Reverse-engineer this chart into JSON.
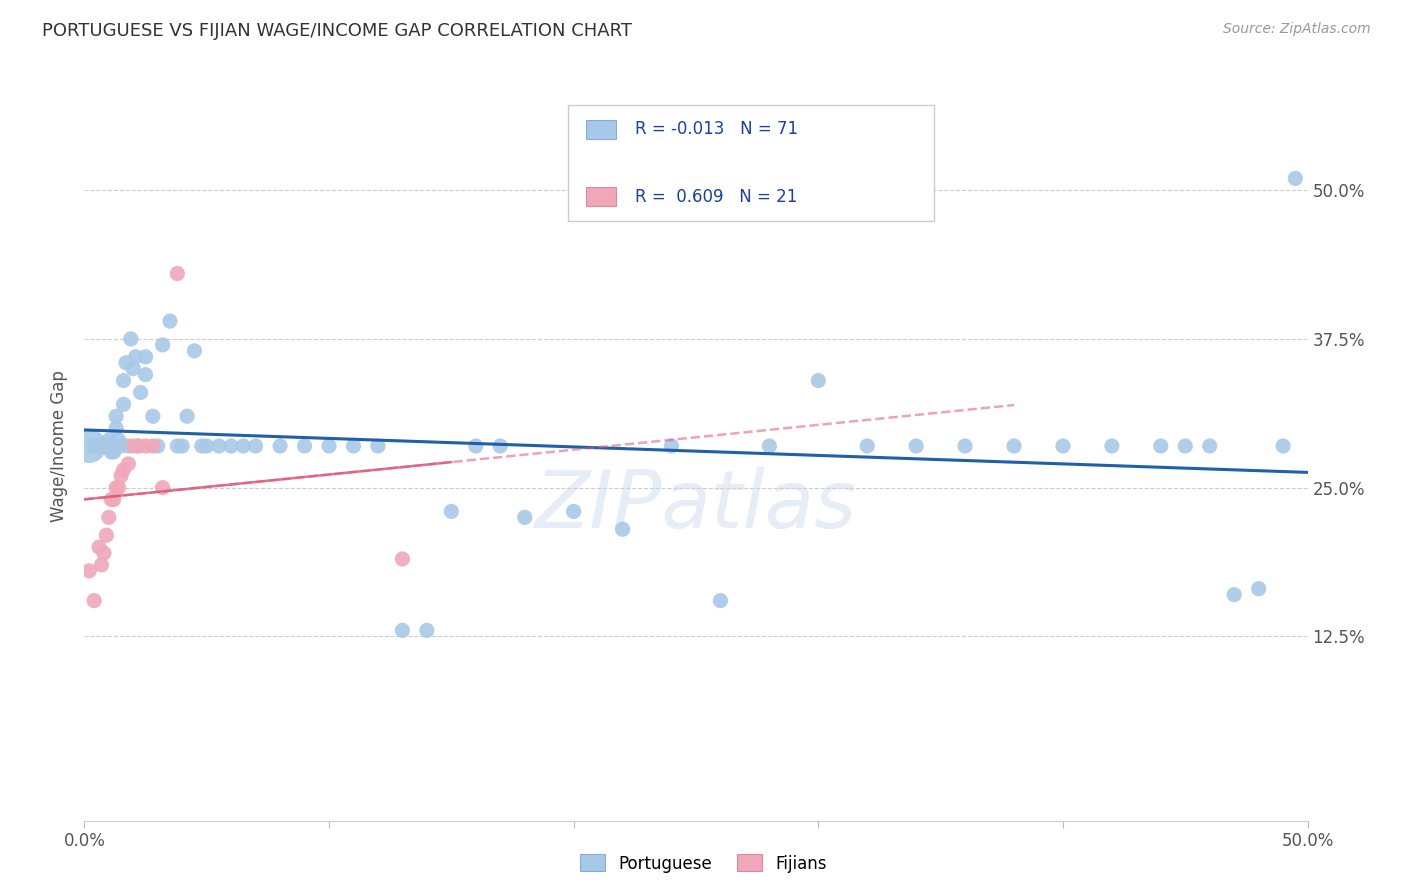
{
  "title": "PORTUGUESE VS FIJIAN WAGE/INCOME GAP CORRELATION CHART",
  "source": "Source: ZipAtlas.com",
  "ylabel": "Wage/Income Gap",
  "xlim": [
    0.0,
    0.5
  ],
  "ylim": [
    -0.03,
    0.6
  ],
  "portuguese_R": -0.013,
  "portuguese_N": 71,
  "fijian_R": 0.609,
  "fijian_N": 21,
  "portuguese_color": "#a8c8e8",
  "fijian_color": "#f0a8b8",
  "portuguese_line_color": "#2060a8",
  "fijian_line_color": "#e05878",
  "legend_text_color": "#1a40a0",
  "watermark": "ZIPatlas",
  "portuguese_x": [
    0.002,
    0.004,
    0.006,
    0.007,
    0.008,
    0.009,
    0.01,
    0.01,
    0.011,
    0.011,
    0.012,
    0.012,
    0.013,
    0.013,
    0.014,
    0.015,
    0.016,
    0.016,
    0.017,
    0.018,
    0.019,
    0.02,
    0.021,
    0.022,
    0.023,
    0.025,
    0.025,
    0.028,
    0.03,
    0.032,
    0.035,
    0.038,
    0.04,
    0.042,
    0.045,
    0.048,
    0.05,
    0.055,
    0.06,
    0.065,
    0.07,
    0.08,
    0.09,
    0.1,
    0.11,
    0.12,
    0.13,
    0.14,
    0.15,
    0.16,
    0.17,
    0.18,
    0.2,
    0.22,
    0.24,
    0.26,
    0.28,
    0.3,
    0.32,
    0.34,
    0.36,
    0.38,
    0.4,
    0.42,
    0.44,
    0.45,
    0.46,
    0.47,
    0.48,
    0.49,
    0.495
  ],
  "portuguese_y": [
    0.285,
    0.285,
    0.285,
    0.285,
    0.285,
    0.285,
    0.285,
    0.29,
    0.28,
    0.285,
    0.28,
    0.285,
    0.3,
    0.31,
    0.29,
    0.285,
    0.32,
    0.34,
    0.355,
    0.285,
    0.375,
    0.35,
    0.36,
    0.285,
    0.33,
    0.345,
    0.36,
    0.31,
    0.285,
    0.37,
    0.39,
    0.285,
    0.285,
    0.31,
    0.365,
    0.285,
    0.285,
    0.285,
    0.285,
    0.285,
    0.285,
    0.285,
    0.285,
    0.285,
    0.285,
    0.285,
    0.13,
    0.13,
    0.23,
    0.285,
    0.285,
    0.225,
    0.23,
    0.215,
    0.285,
    0.155,
    0.285,
    0.34,
    0.285,
    0.285,
    0.285,
    0.285,
    0.285,
    0.285,
    0.285,
    0.285,
    0.285,
    0.16,
    0.165,
    0.285,
    0.51
  ],
  "fijian_x": [
    0.002,
    0.004,
    0.006,
    0.007,
    0.008,
    0.009,
    0.01,
    0.011,
    0.012,
    0.013,
    0.014,
    0.015,
    0.016,
    0.018,
    0.02,
    0.022,
    0.025,
    0.028,
    0.032,
    0.038,
    0.13
  ],
  "fijian_y": [
    0.18,
    0.155,
    0.2,
    0.185,
    0.195,
    0.21,
    0.225,
    0.24,
    0.24,
    0.25,
    0.25,
    0.26,
    0.265,
    0.27,
    0.285,
    0.285,
    0.285,
    0.285,
    0.25,
    0.43,
    0.19
  ],
  "fijian_sizes": [
    100,
    100,
    100,
    100,
    100,
    100,
    100,
    100,
    100,
    100,
    100,
    100,
    100,
    100,
    100,
    100,
    100,
    100,
    100,
    100,
    100
  ]
}
